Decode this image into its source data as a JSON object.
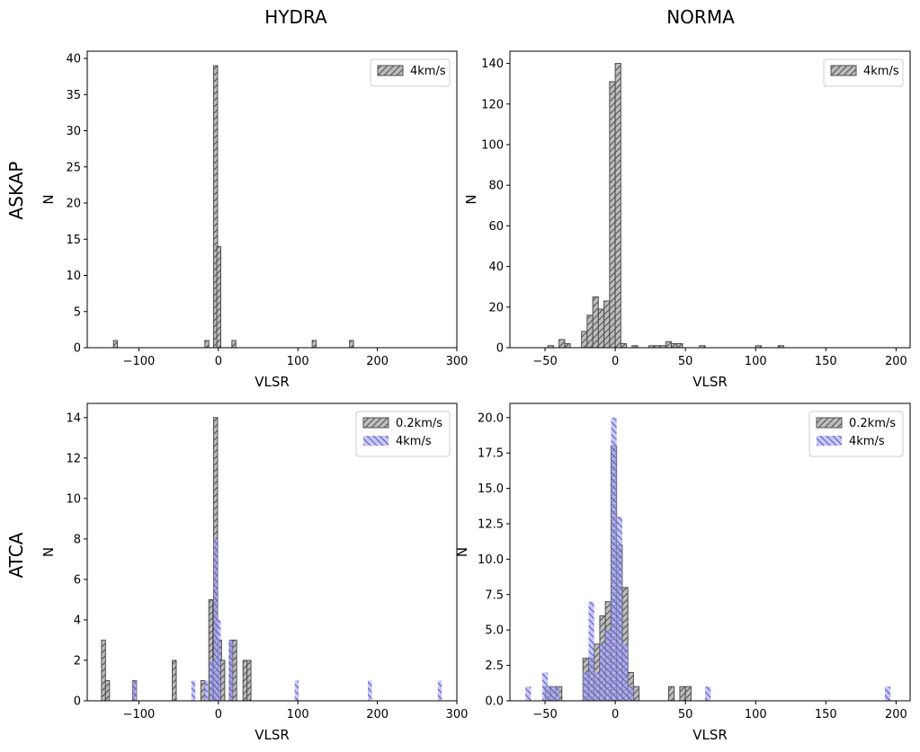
{
  "column_titles": [
    "HYDRA",
    "NORMA"
  ],
  "row_titles": [
    "ASKAP",
    "ATCA"
  ],
  "colors": {
    "gray_fill": "#bdbdbd",
    "gray_edge": "#4d4d4d",
    "blue_fill": "#aaaaf0",
    "blue_edge": "#5555cc"
  },
  "chart_data": [
    {
      "type": "bar",
      "panel": "ASKAP-HYDRA",
      "xlabel": "VLSR",
      "ylabel": "N",
      "xlim": [
        -165,
        300
      ],
      "ylim": [
        0,
        41
      ],
      "xticks": [
        -100,
        0,
        100,
        200,
        300
      ],
      "yticks": [
        0,
        5,
        10,
        15,
        20,
        25,
        30,
        35,
        40
      ],
      "legend_position": "top-right",
      "series": [
        {
          "name": "4km/s",
          "style": "gray",
          "bins": [
            {
              "x": -132,
              "w": 5,
              "y": 1
            },
            {
              "x": -17,
              "w": 5,
              "y": 1
            },
            {
              "x": -6,
              "w": 5,
              "y": 39
            },
            {
              "x": -2,
              "w": 5,
              "y": 14
            },
            {
              "x": 17,
              "w": 5,
              "y": 1
            },
            {
              "x": 118,
              "w": 5,
              "y": 1
            },
            {
              "x": 165,
              "w": 5,
              "y": 1
            }
          ]
        }
      ]
    },
    {
      "type": "bar",
      "panel": "ASKAP-NORMA",
      "xlabel": "VLSR",
      "ylabel": "N",
      "xlim": [
        -75,
        210
      ],
      "ylim": [
        0,
        146
      ],
      "xticks": [
        -50,
        0,
        50,
        100,
        150,
        200
      ],
      "yticks": [
        0,
        20,
        40,
        60,
        80,
        100,
        120,
        140
      ],
      "legend_position": "top-right",
      "series": [
        {
          "name": "4km/s",
          "style": "gray",
          "bins": [
            {
              "x": -48,
              "w": 4,
              "y": 1
            },
            {
              "x": -40,
              "w": 4,
              "y": 4
            },
            {
              "x": -36,
              "w": 4,
              "y": 2
            },
            {
              "x": -24,
              "w": 4,
              "y": 8
            },
            {
              "x": -20,
              "w": 4,
              "y": 16
            },
            {
              "x": -16,
              "w": 4,
              "y": 25
            },
            {
              "x": -12,
              "w": 4,
              "y": 19
            },
            {
              "x": -8,
              "w": 4,
              "y": 23
            },
            {
              "x": -4,
              "w": 4,
              "y": 131
            },
            {
              "x": 0,
              "w": 4,
              "y": 140
            },
            {
              "x": 4,
              "w": 4,
              "y": 2
            },
            {
              "x": 12,
              "w": 4,
              "y": 1
            },
            {
              "x": 24,
              "w": 4,
              "y": 1
            },
            {
              "x": 28,
              "w": 4,
              "y": 1
            },
            {
              "x": 32,
              "w": 4,
              "y": 1
            },
            {
              "x": 36,
              "w": 4,
              "y": 3
            },
            {
              "x": 40,
              "w": 4,
              "y": 2
            },
            {
              "x": 44,
              "w": 4,
              "y": 2
            },
            {
              "x": 60,
              "w": 4,
              "y": 1
            },
            {
              "x": 100,
              "w": 4,
              "y": 1
            },
            {
              "x": 116,
              "w": 4,
              "y": 1
            }
          ]
        }
      ]
    },
    {
      "type": "bar",
      "panel": "ATCA-HYDRA",
      "xlabel": "VLSR",
      "ylabel": "N",
      "xlim": [
        -165,
        300
      ],
      "ylim": [
        0,
        14.7
      ],
      "xticks": [
        -100,
        0,
        100,
        200,
        300
      ],
      "yticks": [
        0,
        2,
        4,
        6,
        8,
        10,
        12,
        14
      ],
      "legend_position": "top-right",
      "series": [
        {
          "name": "0.2km/s",
          "style": "gray",
          "bins": [
            {
              "x": -147,
              "w": 5,
              "y": 3
            },
            {
              "x": -142,
              "w": 5,
              "y": 1
            },
            {
              "x": -108,
              "w": 5,
              "y": 1
            },
            {
              "x": -58,
              "w": 5,
              "y": 2
            },
            {
              "x": -22,
              "w": 5,
              "y": 1
            },
            {
              "x": -12,
              "w": 5,
              "y": 5
            },
            {
              "x": -6,
              "w": 5,
              "y": 14
            },
            {
              "x": -1,
              "w": 5,
              "y": 3
            },
            {
              "x": 3,
              "w": 5,
              "y": 2
            },
            {
              "x": 14,
              "w": 5,
              "y": 3
            },
            {
              "x": 18,
              "w": 5,
              "y": 3
            },
            {
              "x": 31,
              "w": 5,
              "y": 2
            },
            {
              "x": 36,
              "w": 5,
              "y": 2
            }
          ]
        },
        {
          "name": "4km/s",
          "style": "blue",
          "bins": [
            {
              "x": -108,
              "w": 5,
              "y": 1
            },
            {
              "x": -34,
              "w": 5,
              "y": 1
            },
            {
              "x": -18,
              "w": 5,
              "y": 1
            },
            {
              "x": -11,
              "w": 5,
              "y": 2
            },
            {
              "x": -6,
              "w": 5,
              "y": 8
            },
            {
              "x": -2,
              "w": 5,
              "y": 4
            },
            {
              "x": 13,
              "w": 5,
              "y": 3
            },
            {
              "x": 96,
              "w": 5,
              "y": 1
            },
            {
              "x": 188,
              "w": 5,
              "y": 1
            },
            {
              "x": 276,
              "w": 5,
              "y": 1
            }
          ]
        }
      ]
    },
    {
      "type": "bar",
      "panel": "ATCA-NORMA",
      "xlabel": "VLSR",
      "ylabel": "N",
      "xlim": [
        -75,
        210
      ],
      "ylim": [
        0,
        21
      ],
      "xticks": [
        -50,
        0,
        50,
        100,
        150,
        200
      ],
      "yticks": [
        0.0,
        2.5,
        5.0,
        7.5,
        10.0,
        12.5,
        15.0,
        17.5,
        20.0
      ],
      "legend_position": "top-right",
      "series": [
        {
          "name": "0.2km/s",
          "style": "gray",
          "bins": [
            {
              "x": -50,
              "w": 4,
              "y": 1
            },
            {
              "x": -46,
              "w": 4,
              "y": 1
            },
            {
              "x": -42,
              "w": 4,
              "y": 1
            },
            {
              "x": -23,
              "w": 4,
              "y": 3
            },
            {
              "x": -19,
              "w": 4,
              "y": 3
            },
            {
              "x": -15,
              "w": 4,
              "y": 4
            },
            {
              "x": -11,
              "w": 4,
              "y": 6
            },
            {
              "x": -7,
              "w": 4,
              "y": 7
            },
            {
              "x": -3,
              "w": 4,
              "y": 18
            },
            {
              "x": 1,
              "w": 4,
              "y": 11
            },
            {
              "x": 5,
              "w": 4,
              "y": 8
            },
            {
              "x": 9,
              "w": 4,
              "y": 2
            },
            {
              "x": 13,
              "w": 4,
              "y": 1
            },
            {
              "x": 38,
              "w": 4,
              "y": 1
            },
            {
              "x": 46,
              "w": 4,
              "y": 1
            },
            {
              "x": 50,
              "w": 4,
              "y": 1
            }
          ]
        },
        {
          "name": "4km/s",
          "style": "blue",
          "bins": [
            {
              "x": -64,
              "w": 4,
              "y": 1
            },
            {
              "x": -52,
              "w": 4,
              "y": 2
            },
            {
              "x": -48,
              "w": 4,
              "y": 1
            },
            {
              "x": -44,
              "w": 4,
              "y": 1
            },
            {
              "x": -23,
              "w": 4,
              "y": 2
            },
            {
              "x": -19,
              "w": 4,
              "y": 7
            },
            {
              "x": -15,
              "w": 4,
              "y": 2
            },
            {
              "x": -11,
              "w": 4,
              "y": 4
            },
            {
              "x": -7,
              "w": 4,
              "y": 5
            },
            {
              "x": -3,
              "w": 4,
              "y": 20
            },
            {
              "x": 1,
              "w": 4,
              "y": 13
            },
            {
              "x": 5,
              "w": 4,
              "y": 4
            },
            {
              "x": 9,
              "w": 4,
              "y": 1
            },
            {
              "x": 64,
              "w": 4,
              "y": 1
            },
            {
              "x": 192,
              "w": 4,
              "y": 1
            }
          ]
        }
      ]
    }
  ]
}
